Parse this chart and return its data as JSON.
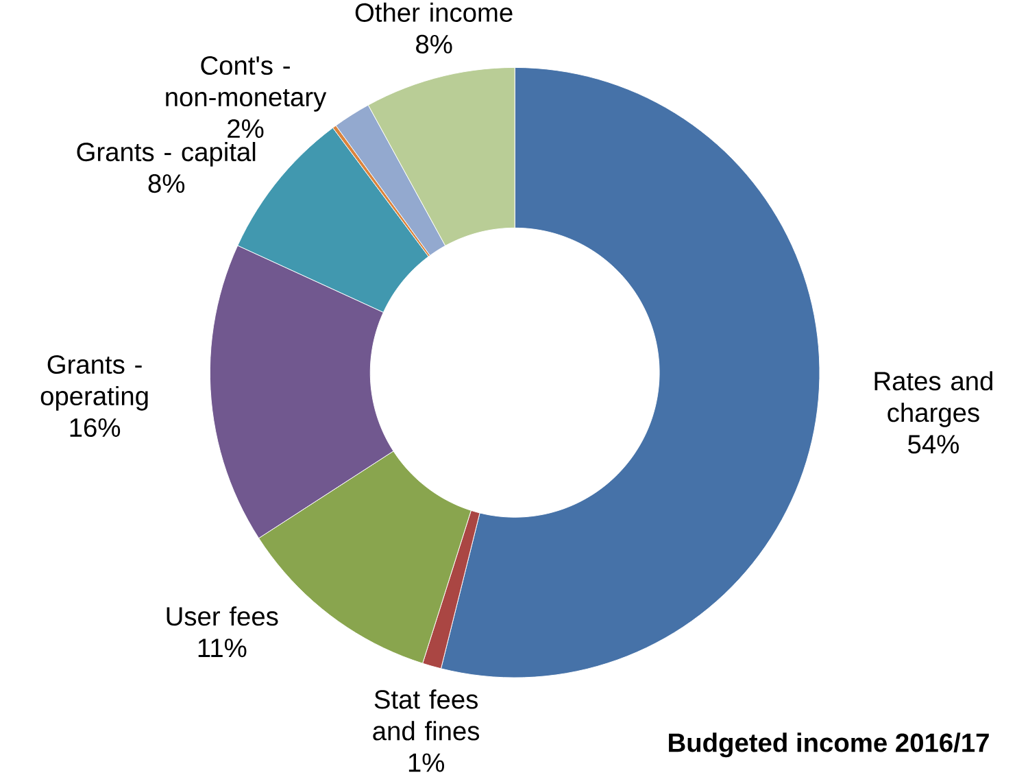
{
  "chart_data": {
    "type": "donut",
    "title": "Budgeted income 2016/17",
    "categories": [
      "Rates and charges",
      "Stat fees and fines",
      "User fees",
      "Grants - operating",
      "Grants - capital",
      null,
      "Cont's - non-monetary",
      "Other income"
    ],
    "values": [
      54,
      1,
      11,
      16,
      8,
      0.2,
      2,
      8
    ],
    "value_labels": [
      "54%",
      "1%",
      "11%",
      "16%",
      "8%",
      null,
      "2%",
      "8%"
    ],
    "colors": [
      "#4672a8",
      "#aa4643",
      "#89a54e",
      "#71588f",
      "#4198af",
      "#db843d",
      "#93a9cf",
      "#b9cd96"
    ]
  }
}
